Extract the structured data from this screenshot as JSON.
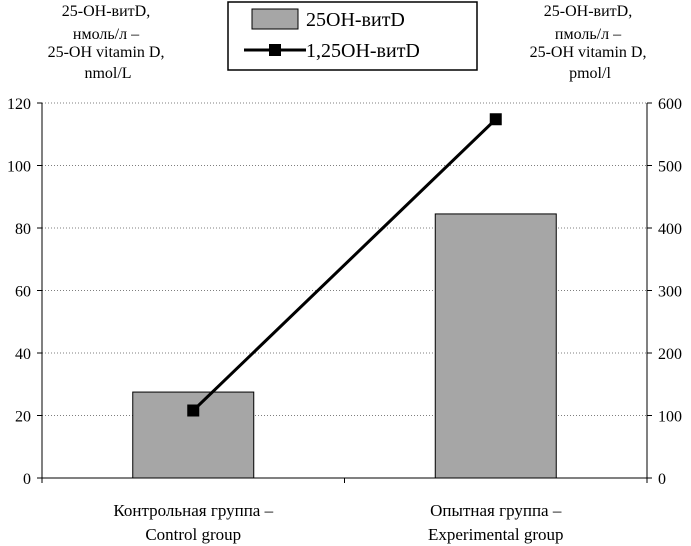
{
  "chart_data": {
    "type": "bar",
    "categories": [
      [
        "Контрольная группа –",
        "Control group"
      ],
      [
        "Опытная группа –",
        "Experimental group"
      ]
    ],
    "series": [
      {
        "name": "25OH-витD",
        "type": "bar",
        "axis": "left",
        "values": [
          27.5,
          84.5
        ],
        "color": "#a6a6a6"
      },
      {
        "name": "1,25OH-витD",
        "type": "line",
        "axis": "right",
        "values": [
          108,
          574
        ],
        "color": "#000000"
      }
    ],
    "y_left": {
      "label": [
        "25-OH-витD,",
        "нмоль/л –",
        "25-OH vitamin D,",
        "nmol/L"
      ],
      "ylim": [
        0,
        120
      ],
      "ticks": [
        0,
        20,
        40,
        60,
        80,
        100,
        120
      ]
    },
    "y_right": {
      "label": [
        "25-OH-витD,",
        "пмоль/л –",
        "25-OH vitamin D,",
        "pmol/l"
      ],
      "ylim": [
        0,
        600
      ],
      "ticks": [
        0,
        100,
        200,
        300,
        400,
        500,
        600
      ]
    },
    "grid": true,
    "legend": "top-center"
  }
}
